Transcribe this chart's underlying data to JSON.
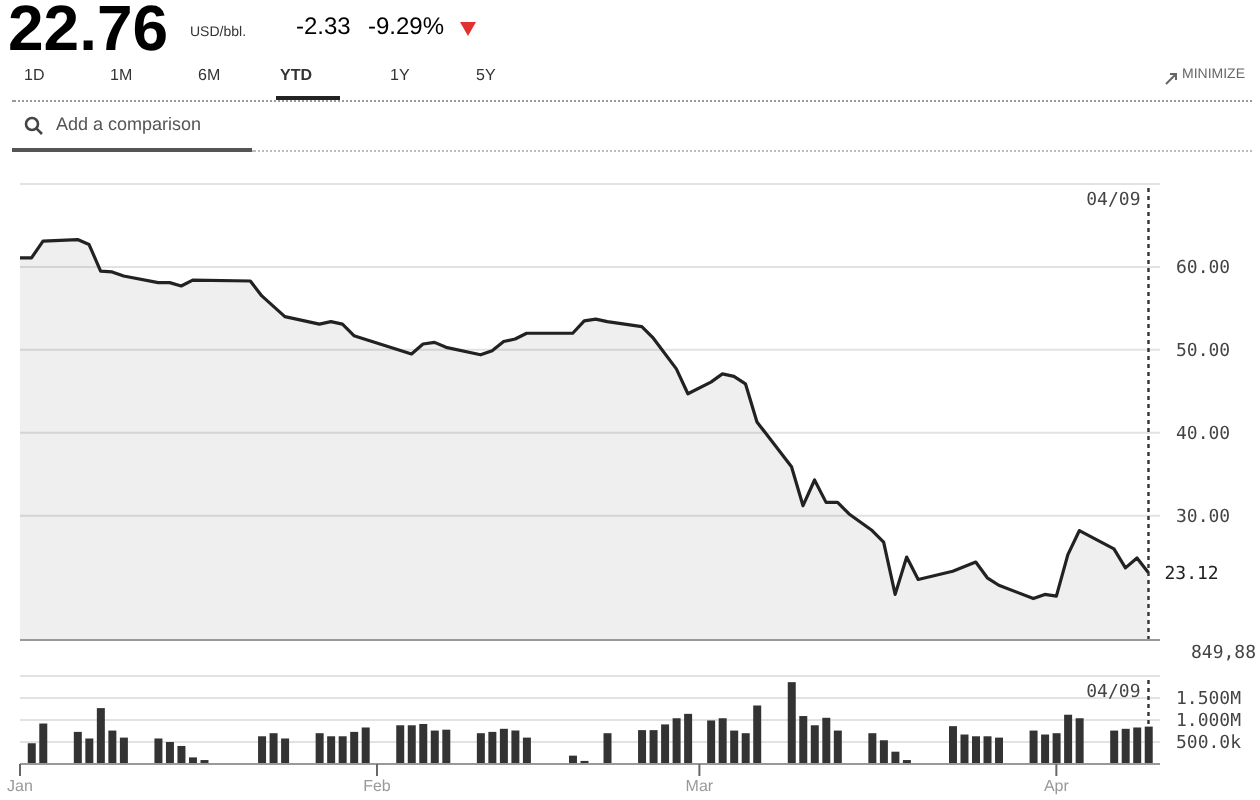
{
  "chart_data": [
    {
      "type": "area",
      "title": "22.76",
      "subtitle": "USD/bbl.",
      "annotations": [
        "-2.33",
        "-9.29%",
        "1D",
        "1M",
        "6M",
        "YTD",
        "1Y",
        "5Y",
        "MINIMIZE",
        "Add a comparison",
        {
          "text": "23.12",
          "x": "--04-09",
          "y": 23.12
        }
      ],
      "x": [
        "--01-01",
        "--01-02",
        "--01-03",
        "--01-06",
        "--01-07",
        "--01-08",
        "--01-09",
        "--01-10",
        "--01-13",
        "--01-14",
        "--01-15",
        "--01-16",
        "--01-21",
        "--01-22",
        "--01-24",
        "--01-27",
        "--01-28",
        "--01-29",
        "--01-30",
        "--02-04",
        "--02-05",
        "--02-06",
        "--02-07",
        "--02-10",
        "--02-11",
        "--02-12",
        "--02-13",
        "--02-14",
        "--02-18",
        "--02-19",
        "--02-20",
        "--02-21",
        "--02-24",
        "--02-25",
        "--02-27",
        "--02-28",
        "--03-02",
        "--03-03",
        "--03-04",
        "--03-05",
        "--03-06",
        "--03-09",
        "--03-10",
        "--03-11",
        "--03-12",
        "--03-13",
        "--03-14",
        "--03-16",
        "--03-17",
        "--03-18",
        "--03-19",
        "--03-20",
        "--03-23",
        "--03-25",
        "--03-26",
        "--03-27",
        "--03-30",
        "--03-31",
        "--04-01",
        "--04-02",
        "--04-03",
        "--04-06",
        "--04-07",
        "--04-08",
        "--04-09"
      ],
      "series": [
        {
          "color": "#222222",
          "values": [
            61.1,
            61.1,
            63.1,
            63.3,
            62.7,
            59.5,
            59.4,
            58.9,
            58.1,
            58.1,
            57.7,
            58.4,
            58.3,
            56.5,
            54.0,
            53.1,
            53.4,
            53.1,
            51.7,
            49.5,
            50.7,
            50.9,
            50.3,
            49.4,
            49.9,
            51.0,
            51.3,
            52.0,
            52.0,
            53.5,
            53.7,
            53.4,
            52.8,
            51.4,
            47.7,
            44.7,
            46.1,
            47.1,
            46.8,
            45.9,
            41.3,
            35.9,
            31.2,
            34.3,
            31.6,
            31.6,
            30.2,
            28.2,
            26.8,
            20.5,
            25.0,
            22.3,
            23.3,
            24.4,
            22.5,
            21.6,
            20.0,
            20.5,
            20.3,
            25.3,
            28.2,
            26.0,
            23.7,
            24.9,
            23.12
          ]
        }
      ],
      "xlim": [
        "--01-01",
        "--04-10"
      ],
      "ylim": [
        15,
        70
      ],
      "yticks": [
        {
          "value": 30,
          "label": "30.00"
        },
        {
          "value": 40,
          "label": "40.00"
        },
        {
          "value": 50,
          "label": "50.00"
        },
        {
          "value": 60,
          "label": "60.00"
        }
      ],
      "ref_lines": [
        {
          "axis": "x",
          "value": "--04-09",
          "label": "04/09",
          "line_style": "dotted"
        }
      ],
      "grid": "y",
      "tick_labels": "y",
      "marker": "none"
    },
    {
      "type": "bar",
      "annotations": [
        "849,88"
      ],
      "x": [
        "--01-02",
        "--01-03",
        "--01-06",
        "--01-07",
        "--01-08",
        "--01-09",
        "--01-10",
        "--01-13",
        "--01-14",
        "--01-15",
        "--01-16",
        "--01-17",
        "--01-22",
        "--01-23",
        "--01-24",
        "--01-27",
        "--01-28",
        "--01-29",
        "--01-30",
        "--01-31",
        "--02-03",
        "--02-04",
        "--02-05",
        "--02-06",
        "--02-07",
        "--02-10",
        "--02-11",
        "--02-12",
        "--02-13",
        "--02-14",
        "--02-18",
        "--02-19",
        "--02-21",
        "--02-24",
        "--02-25",
        "--02-26",
        "--02-27",
        "--02-28",
        "--03-02",
        "--03-03",
        "--03-04",
        "--03-05",
        "--03-06",
        "--03-09",
        "--03-10",
        "--03-11",
        "--03-12",
        "--03-13",
        "--03-16",
        "--03-17",
        "--03-18",
        "--03-19",
        "--03-23",
        "--03-24",
        "--03-25",
        "--03-26",
        "--03-27",
        "--03-30",
        "--03-31",
        "--04-01",
        "--04-02",
        "--04-03",
        "--04-06",
        "--04-07",
        "--04-08",
        "--04-09"
      ],
      "series": [
        {
          "color": "#333333",
          "values": [
            470000,
            920000,
            730000,
            580000,
            1270000,
            760000,
            600000,
            580000,
            500000,
            410000,
            150000,
            90000,
            630000,
            700000,
            580000,
            700000,
            630000,
            630000,
            730000,
            830000,
            880000,
            880000,
            910000,
            760000,
            780000,
            700000,
            730000,
            800000,
            760000,
            600000,
            190000,
            70000,
            700000,
            770000,
            770000,
            900000,
            1040000,
            1140000,
            990000,
            1040000,
            760000,
            700000,
            1330000,
            1860000,
            1090000,
            880000,
            1050000,
            760000,
            700000,
            540000,
            280000,
            90000,
            860000,
            670000,
            630000,
            630000,
            600000,
            760000,
            670000,
            700000,
            1120000,
            1040000,
            760000,
            800000,
            830000,
            850000
          ]
        }
      ],
      "xlim": [
        "--01-01",
        "--04-10"
      ],
      "xticks": [
        {
          "value": "--01-01",
          "label": "Jan"
        },
        {
          "value": "--02-01",
          "label": "Feb"
        },
        {
          "value": "--03-01",
          "label": "Mar"
        },
        {
          "value": "--04-01",
          "label": "Apr"
        }
      ],
      "ylim": [
        0,
        2000000
      ],
      "yticks": [
        {
          "value": 500000,
          "label": "500.0k"
        },
        {
          "value": 1000000,
          "label": "1.000M"
        },
        {
          "value": 1500000,
          "label": "1.500M"
        }
      ],
      "ref_lines": [
        {
          "axis": "x",
          "value": "--04-09",
          "label": "04/09",
          "line_style": "dotted"
        }
      ],
      "grid": "y"
    }
  ]
}
